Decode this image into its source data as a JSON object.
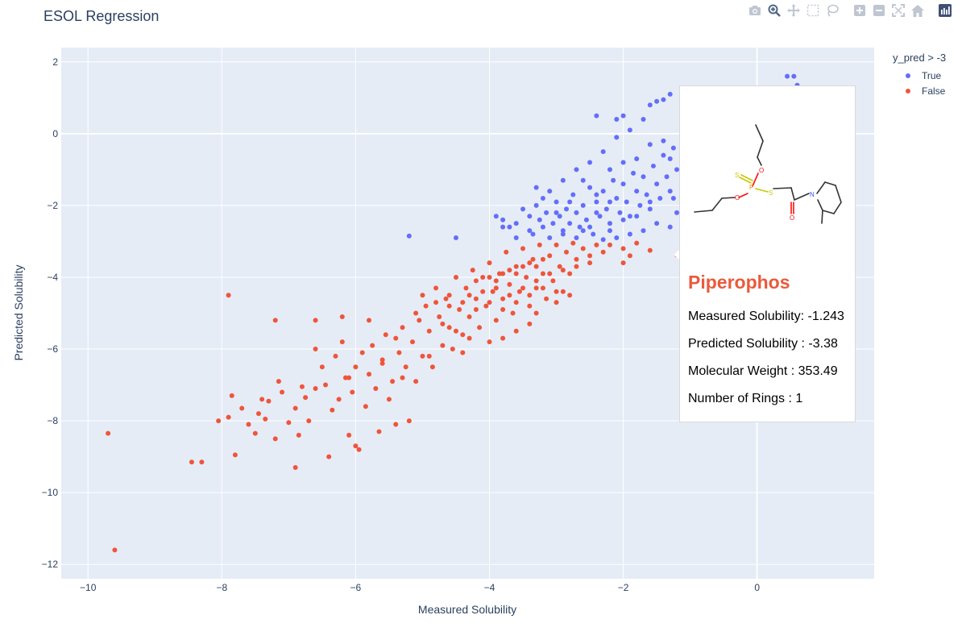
{
  "chart_data": {
    "type": "scatter",
    "title": "ESOL Regression",
    "xlabel": "Measured Solubility",
    "ylabel": "Predicted Solubility",
    "xlim": [
      -10.4,
      1.75
    ],
    "ylim": [
      -12.4,
      2.4
    ],
    "x_ticks": [
      -10,
      -8,
      -6,
      -4,
      -2,
      0
    ],
    "x_tick_labels": [
      "−10",
      "−8",
      "−6",
      "−4",
      "−2",
      "0"
    ],
    "y_ticks": [
      2,
      0,
      -2,
      -4,
      -6,
      -8,
      -10,
      -12
    ],
    "y_tick_labels": [
      "2",
      "0",
      "−2",
      "−4",
      "−6",
      "−8",
      "−10",
      "−12"
    ],
    "grid": true,
    "legend_title": "y_pred > -3",
    "legend_position": "top-right",
    "series": [
      {
        "name": "True",
        "color": "#636efa",
        "points": [
          [
            -3.9,
            -2.3
          ],
          [
            -3.8,
            -2.4
          ],
          [
            -3.7,
            -2.6
          ],
          [
            -3.6,
            -2.5
          ],
          [
            -3.5,
            -2.1
          ],
          [
            -3.4,
            -2.3
          ],
          [
            -3.35,
            -2.8
          ],
          [
            -3.3,
            -2.0
          ],
          [
            -3.25,
            -2.4
          ],
          [
            -3.2,
            -2.6
          ],
          [
            -3.15,
            -2.2
          ],
          [
            -3.1,
            -2.9
          ],
          [
            -3.05,
            -2.5
          ],
          [
            -3.0,
            -1.9
          ],
          [
            -2.95,
            -2.3
          ],
          [
            -2.9,
            -2.7
          ],
          [
            -2.85,
            -2.1
          ],
          [
            -2.8,
            -2.5
          ],
          [
            -2.75,
            -1.7
          ],
          [
            -2.7,
            -2.2
          ],
          [
            -2.65,
            -2.6
          ],
          [
            -2.6,
            -2.0
          ],
          [
            -2.55,
            -2.4
          ],
          [
            -2.5,
            -1.5
          ],
          [
            -2.45,
            -2.8
          ],
          [
            -2.4,
            -1.9
          ],
          [
            -2.35,
            -2.3
          ],
          [
            -2.3,
            -1.6
          ],
          [
            -2.25,
            -2.1
          ],
          [
            -2.2,
            -2.5
          ],
          [
            -2.15,
            -1.3
          ],
          [
            -2.1,
            -1.8
          ],
          [
            -2.05,
            -2.2
          ],
          [
            -2.0,
            -1.4
          ],
          [
            -1.95,
            -1.9
          ],
          [
            -1.9,
            -2.3
          ],
          [
            -1.85,
            -1.1
          ],
          [
            -1.8,
            -1.6
          ],
          [
            -1.75,
            -2.0
          ],
          [
            -1.7,
            -1.2
          ],
          [
            -1.65,
            -1.7
          ],
          [
            -1.6,
            -2.1
          ],
          [
            -1.55,
            -0.9
          ],
          [
            -1.5,
            -1.4
          ],
          [
            -1.45,
            -1.8
          ],
          [
            -1.4,
            -0.6
          ],
          [
            -1.35,
            -1.2
          ],
          [
            -1.3,
            -1.6
          ],
          [
            -1.25,
            -0.4
          ],
          [
            -1.2,
            -1.0
          ],
          [
            -3.1,
            -1.6
          ],
          [
            -2.9,
            -1.3
          ],
          [
            -2.7,
            -1.0
          ],
          [
            -2.5,
            -0.8
          ],
          [
            -2.3,
            -0.5
          ],
          [
            -2.1,
            -0.1
          ],
          [
            -1.9,
            0.1
          ],
          [
            -1.7,
            0.4
          ],
          [
            -1.6,
            0.8
          ],
          [
            -1.5,
            0.9
          ],
          [
            -1.4,
            0.95
          ],
          [
            -1.3,
            1.1
          ],
          [
            -2.1,
            0.4
          ],
          [
            -2.0,
            0.5
          ],
          [
            -2.4,
            0.5
          ],
          [
            -5.2,
            -2.85
          ],
          [
            -4.5,
            -2.9
          ],
          [
            -3.8,
            -2.6
          ],
          [
            -3.6,
            -2.9
          ],
          [
            -3.3,
            -1.5
          ],
          [
            -2.2,
            -1.0
          ],
          [
            -2.0,
            -0.8
          ],
          [
            -1.8,
            -0.7
          ],
          [
            -1.6,
            -0.3
          ],
          [
            -1.4,
            -0.2
          ],
          [
            -1.3,
            -0.7
          ],
          [
            -2.6,
            -1.3
          ],
          [
            -2.4,
            -1.7
          ],
          [
            -2.2,
            -1.9
          ],
          [
            -1.2,
            -2.2
          ],
          [
            -1.3,
            -2.6
          ],
          [
            -1.5,
            -2.5
          ],
          [
            -1.7,
            -2.7
          ],
          [
            -1.9,
            -2.8
          ],
          [
            -2.1,
            -2.9
          ],
          [
            -2.3,
            -2.95
          ],
          [
            -2.5,
            -2.6
          ],
          [
            -2.7,
            -2.9
          ],
          [
            -2.9,
            -2.8
          ],
          [
            -1.25,
            -1.8
          ],
          [
            -3.4,
            -2.7
          ],
          [
            -3.2,
            -1.8
          ],
          [
            -3.0,
            -2.2
          ],
          [
            -2.8,
            -1.9
          ],
          [
            -2.6,
            -2.7
          ],
          [
            -2.4,
            -2.2
          ],
          [
            -2.2,
            -2.7
          ],
          [
            -2.0,
            -2.4
          ],
          [
            -1.8,
            -2.3
          ],
          [
            -1.6,
            -1.9
          ],
          [
            0.45,
            1.6
          ],
          [
            0.55,
            1.6
          ],
          [
            0.6,
            1.35
          ]
        ]
      },
      {
        "name": "False",
        "color": "#ef553b",
        "points": [
          [
            -9.7,
            -8.35
          ],
          [
            -9.6,
            -11.6
          ],
          [
            -8.45,
            -9.15
          ],
          [
            -8.3,
            -9.15
          ],
          [
            -8.05,
            -8.0
          ],
          [
            -7.9,
            -7.9
          ],
          [
            -7.85,
            -7.3
          ],
          [
            -7.7,
            -7.65
          ],
          [
            -7.6,
            -8.1
          ],
          [
            -7.5,
            -8.35
          ],
          [
            -7.45,
            -7.8
          ],
          [
            -7.4,
            -7.4
          ],
          [
            -7.35,
            -7.95
          ],
          [
            -7.3,
            -7.45
          ],
          [
            -7.2,
            -8.5
          ],
          [
            -7.15,
            -6.9
          ],
          [
            -7.1,
            -7.2
          ],
          [
            -7.0,
            -8.05
          ],
          [
            -6.9,
            -7.65
          ],
          [
            -6.85,
            -8.4
          ],
          [
            -6.8,
            -7.05
          ],
          [
            -6.75,
            -7.35
          ],
          [
            -6.7,
            -8.0
          ],
          [
            -6.6,
            -7.1
          ],
          [
            -6.5,
            -6.5
          ],
          [
            -6.45,
            -7.0
          ],
          [
            -6.4,
            -9.0
          ],
          [
            -6.35,
            -7.7
          ],
          [
            -6.3,
            -6.2
          ],
          [
            -6.25,
            -7.4
          ],
          [
            -6.2,
            -5.8
          ],
          [
            -6.15,
            -6.8
          ],
          [
            -6.1,
            -8.4
          ],
          [
            -6.05,
            -7.2
          ],
          [
            -6.0,
            -6.5
          ],
          [
            -5.95,
            -8.8
          ],
          [
            -5.9,
            -6.1
          ],
          [
            -5.85,
            -7.6
          ],
          [
            -5.8,
            -6.7
          ],
          [
            -5.75,
            -5.9
          ],
          [
            -5.7,
            -7.1
          ],
          [
            -5.65,
            -8.3
          ],
          [
            -5.6,
            -6.4
          ],
          [
            -5.55,
            -5.6
          ],
          [
            -5.5,
            -7.4
          ],
          [
            -5.45,
            -6.9
          ],
          [
            -5.4,
            -8.1
          ],
          [
            -5.35,
            -6.1
          ],
          [
            -5.3,
            -5.4
          ],
          [
            -5.25,
            -6.5
          ],
          [
            -5.2,
            -8.0
          ],
          [
            -5.15,
            -5.8
          ],
          [
            -5.1,
            -6.9
          ],
          [
            -5.05,
            -5.2
          ],
          [
            -5.0,
            -6.2
          ],
          [
            -4.95,
            -4.8
          ],
          [
            -4.9,
            -5.5
          ],
          [
            -4.85,
            -6.5
          ],
          [
            -4.8,
            -4.3
          ],
          [
            -4.75,
            -5.1
          ],
          [
            -4.7,
            -5.9
          ],
          [
            -4.65,
            -4.6
          ],
          [
            -4.6,
            -5.4
          ],
          [
            -4.55,
            -6.0
          ],
          [
            -4.5,
            -4.0
          ],
          [
            -4.45,
            -4.9
          ],
          [
            -4.4,
            -5.6
          ],
          [
            -4.35,
            -4.3
          ],
          [
            -4.3,
            -5.1
          ],
          [
            -4.25,
            -3.8
          ],
          [
            -4.2,
            -4.6
          ],
          [
            -4.15,
            -5.4
          ],
          [
            -4.1,
            -4.0
          ],
          [
            -4.05,
            -4.8
          ],
          [
            -4.0,
            -3.6
          ],
          [
            -3.95,
            -4.4
          ],
          [
            -3.9,
            -5.2
          ],
          [
            -3.85,
            -3.9
          ],
          [
            -3.8,
            -4.6
          ],
          [
            -3.75,
            -3.3
          ],
          [
            -3.7,
            -4.2
          ],
          [
            -3.65,
            -5.0
          ],
          [
            -3.6,
            -3.7
          ],
          [
            -3.55,
            -4.4
          ],
          [
            -3.5,
            -3.2
          ],
          [
            -3.45,
            -4.0
          ],
          [
            -3.4,
            -4.8
          ],
          [
            -3.35,
            -3.5
          ],
          [
            -3.3,
            -4.3
          ],
          [
            -3.25,
            -3.1
          ],
          [
            -3.2,
            -3.9
          ],
          [
            -3.15,
            -4.6
          ],
          [
            -3.1,
            -3.4
          ],
          [
            -3.05,
            -4.1
          ],
          [
            -3.0,
            -3.1
          ],
          [
            -2.95,
            -3.7
          ],
          [
            -2.9,
            -4.4
          ],
          [
            -2.85,
            -3.3
          ],
          [
            -2.8,
            -3.9
          ],
          [
            -2.75,
            -3.05
          ],
          [
            -2.7,
            -3.5
          ],
          [
            -2.6,
            -3.2
          ],
          [
            -2.5,
            -3.6
          ],
          [
            -2.4,
            -3.1
          ],
          [
            -2.3,
            -3.3
          ],
          [
            -2.2,
            -3.1
          ],
          [
            -2.0,
            -3.2
          ],
          [
            -1.9,
            -3.4
          ],
          [
            -1.8,
            -3.05
          ],
          [
            -1.6,
            -3.25
          ],
          [
            -1.2,
            -3.38
          ],
          [
            -2.0,
            -3.6
          ],
          [
            -7.9,
            -4.5
          ],
          [
            -7.8,
            -8.95
          ],
          [
            -6.9,
            -9.3
          ],
          [
            -7.2,
            -5.2
          ],
          [
            -6.6,
            -5.2
          ],
          [
            -6.1,
            -6.8
          ],
          [
            -6.0,
            -8.7
          ],
          [
            -5.4,
            -5.7
          ],
          [
            -4.9,
            -6.2
          ],
          [
            -4.6,
            -4.8
          ],
          [
            -4.4,
            -6.1
          ],
          [
            -4.0,
            -5.8
          ],
          [
            -3.8,
            -5.7
          ],
          [
            -3.6,
            -5.5
          ],
          [
            -3.4,
            -5.3
          ],
          [
            -3.3,
            -5.0
          ],
          [
            -3.0,
            -4.7
          ],
          [
            -2.8,
            -4.5
          ],
          [
            -4.2,
            -4.1
          ],
          [
            -4.0,
            -4.0
          ],
          [
            -3.9,
            -4.1
          ],
          [
            -3.8,
            -3.9
          ],
          [
            -3.7,
            -3.8
          ],
          [
            -3.6,
            -3.9
          ],
          [
            -3.5,
            -3.7
          ],
          [
            -3.4,
            -3.6
          ],
          [
            -3.3,
            -3.7
          ],
          [
            -3.2,
            -3.5
          ],
          [
            -4.3,
            -4.5
          ],
          [
            -4.1,
            -4.4
          ],
          [
            -3.9,
            -4.3
          ],
          [
            -3.7,
            -4.5
          ],
          [
            -3.5,
            -4.3
          ],
          [
            -3.3,
            -4.1
          ],
          [
            -3.1,
            -3.9
          ],
          [
            -2.9,
            -3.8
          ],
          [
            -2.7,
            -3.7
          ],
          [
            -2.5,
            -3.4
          ],
          [
            -5.0,
            -4.5
          ],
          [
            -4.8,
            -4.7
          ],
          [
            -4.6,
            -4.5
          ],
          [
            -4.4,
            -4.7
          ],
          [
            -4.2,
            -4.9
          ],
          [
            -4.0,
            -4.7
          ],
          [
            -3.8,
            -4.9
          ],
          [
            -3.6,
            -4.7
          ],
          [
            -3.4,
            -4.5
          ],
          [
            -3.2,
            -4.3
          ],
          [
            -6.6,
            -6.0
          ],
          [
            -6.2,
            -5.1
          ],
          [
            -5.8,
            -5.2
          ],
          [
            -5.6,
            -6.3
          ],
          [
            -5.3,
            -6.8
          ],
          [
            -5.1,
            -5.0
          ],
          [
            -4.7,
            -5.3
          ],
          [
            -4.5,
            -5.5
          ],
          [
            -4.3,
            -5.7
          ],
          [
            -3.0,
            -4.4
          ]
        ]
      }
    ]
  },
  "tooltip": {
    "name": "Piperophos",
    "measured": "Measured Solubility: -1.243",
    "predicted": "Predicted Solubility : -3.38",
    "weight": "Molecular Weight : 353.49",
    "rings": "Number of Rings : 1",
    "atom_labels": {
      "S": "S",
      "P": "P",
      "O": "O",
      "N": "N"
    },
    "atom_colors": {
      "S": "#c8c800",
      "P": "#ff8000",
      "O": "#ff0d0d",
      "N": "#3050f8"
    }
  },
  "modebar": {
    "icons": [
      "camera-icon",
      "zoom-icon",
      "pan-icon",
      "box-select-icon",
      "lasso-icon",
      "zoom-in-icon",
      "zoom-out-icon",
      "autoscale-icon",
      "reset-axes-icon",
      "plotly-logo-icon"
    ]
  }
}
